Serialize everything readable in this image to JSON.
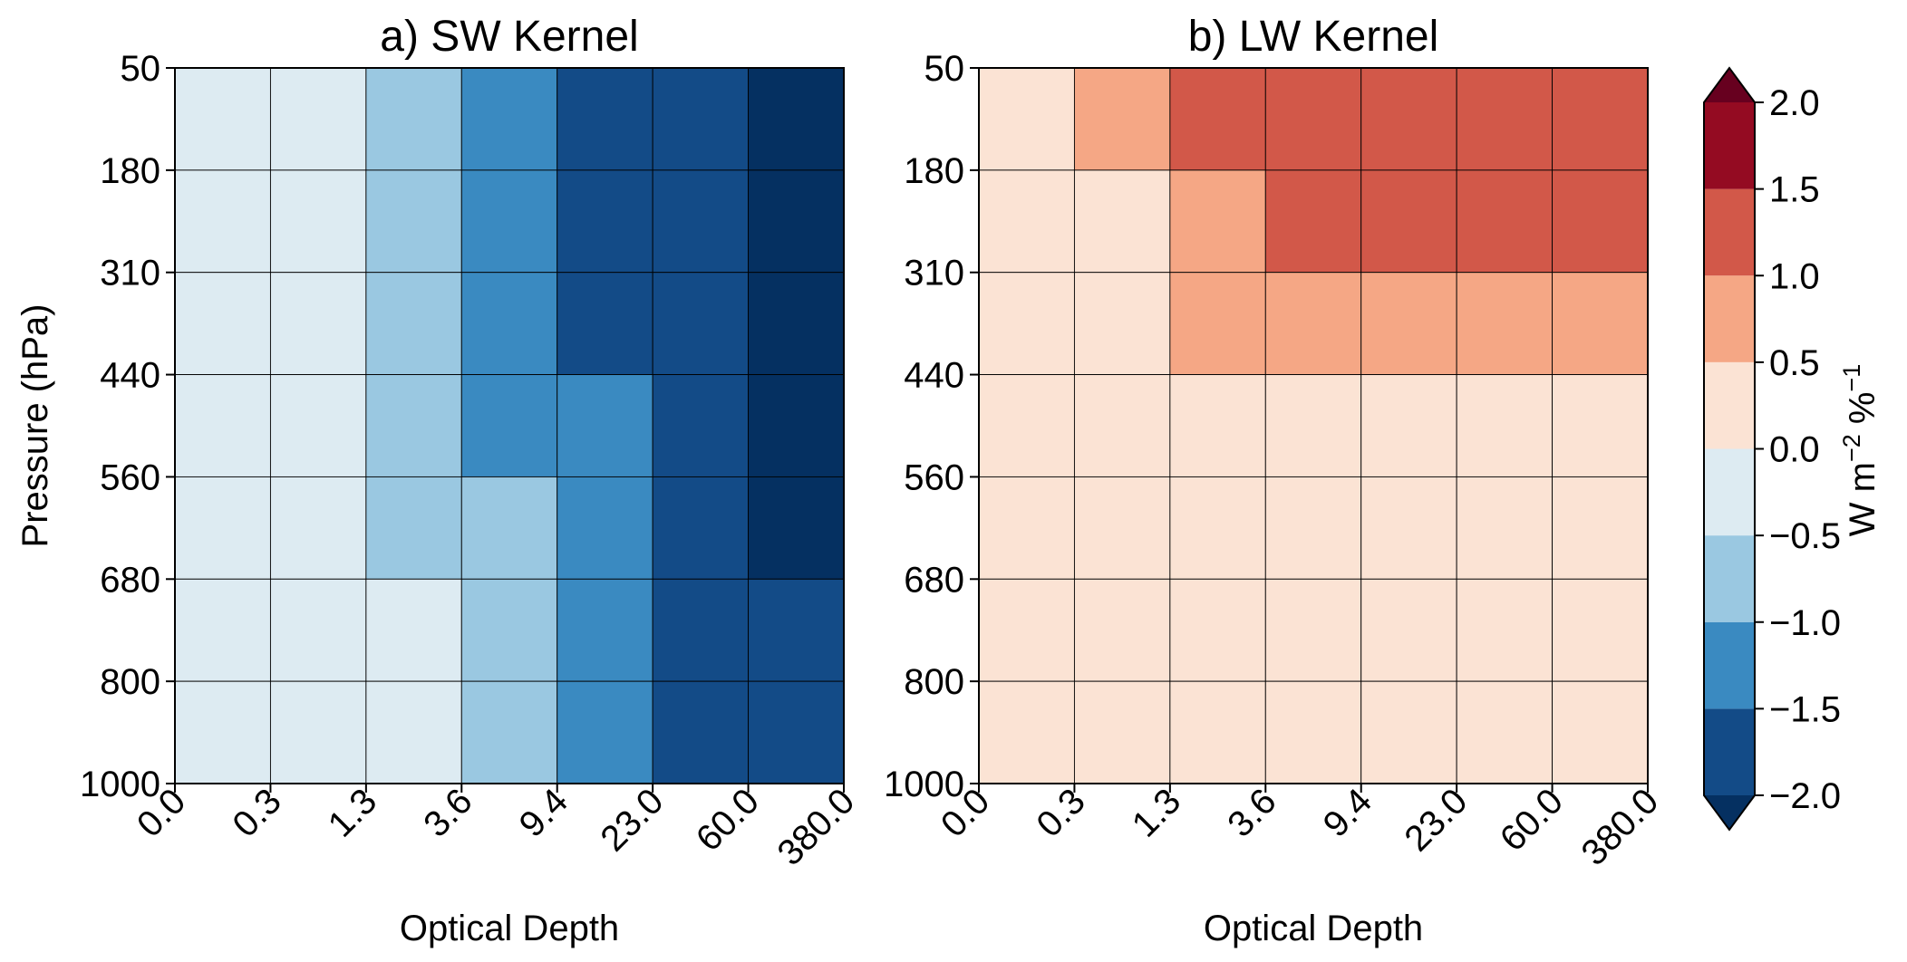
{
  "chart_data": [
    {
      "type": "heatmap",
      "title": "a) SW Kernel",
      "xlabel": "Optical Depth",
      "ylabel": "Pressure (hPa)",
      "x_ticks": [
        "0.0",
        "0.3",
        "1.3",
        "3.6",
        "9.4",
        "23.0",
        "60.0",
        "380.0"
      ],
      "y_ticks": [
        "50",
        "180",
        "310",
        "440",
        "560",
        "680",
        "800",
        "1000"
      ],
      "rows_top_to_bottom": [
        "50-180",
        "180-310",
        "310-440",
        "440-560",
        "560-680",
        "680-800",
        "800-1000"
      ],
      "columns_left_to_right": [
        "0.0-0.3",
        "0.3-1.3",
        "1.3-3.6",
        "3.6-9.4",
        "9.4-23.0",
        "23.0-60.0",
        "60.0-380.0"
      ],
      "values": [
        [
          -0.05,
          -0.3,
          -0.75,
          -1.25,
          -1.6,
          -1.9,
          -2.1
        ],
        [
          -0.05,
          -0.3,
          -0.75,
          -1.2,
          -1.55,
          -1.9,
          -2.1
        ],
        [
          -0.05,
          -0.3,
          -0.75,
          -1.2,
          -1.55,
          -1.9,
          -2.1
        ],
        [
          -0.05,
          -0.28,
          -0.7,
          -1.15,
          -1.5,
          -1.85,
          -2.1
        ],
        [
          -0.03,
          -0.2,
          -0.6,
          -1.0,
          -1.4,
          -1.75,
          -2.05
        ],
        [
          -0.02,
          -0.15,
          -0.5,
          -0.9,
          -1.3,
          -1.65,
          -1.95
        ],
        [
          -0.01,
          -0.12,
          -0.45,
          -0.85,
          -1.25,
          -1.55,
          -1.85
        ]
      ]
    },
    {
      "type": "heatmap",
      "title": "b) LW Kernel",
      "xlabel": "Optical Depth",
      "ylabel": "",
      "x_ticks": [
        "0.0",
        "0.3",
        "1.3",
        "3.6",
        "9.4",
        "23.0",
        "60.0",
        "380.0"
      ],
      "y_ticks": [
        "50",
        "180",
        "310",
        "440",
        "560",
        "680",
        "800",
        "1000"
      ],
      "rows_top_to_bottom": [
        "50-180",
        "180-310",
        "310-440",
        "440-560",
        "560-680",
        "680-800",
        "800-1000"
      ],
      "columns_left_to_right": [
        "0.0-0.3",
        "0.3-1.3",
        "1.3-3.6",
        "3.6-9.4",
        "9.4-23.0",
        "23.0-60.0",
        "60.0-380.0"
      ],
      "values": [
        [
          0.15,
          0.6,
          1.1,
          1.35,
          1.4,
          1.4,
          1.4
        ],
        [
          0.1,
          0.45,
          0.9,
          1.05,
          1.1,
          1.1,
          1.1
        ],
        [
          0.05,
          0.3,
          0.6,
          0.7,
          0.75,
          0.75,
          0.75
        ],
        [
          0.05,
          0.2,
          0.3,
          0.35,
          0.38,
          0.4,
          0.4
        ],
        [
          0.03,
          0.12,
          0.18,
          0.2,
          0.22,
          0.22,
          0.22
        ],
        [
          0.02,
          0.08,
          0.12,
          0.14,
          0.15,
          0.15,
          0.15
        ],
        [
          0.01,
          0.04,
          0.06,
          0.07,
          0.07,
          0.07,
          0.07
        ]
      ]
    }
  ],
  "colorbar": {
    "label_base": "W m",
    "label_exp1": "−2",
    "label_mid": " %",
    "label_exp2": "−1",
    "ticks": [
      "2.0",
      "1.5",
      "1.0",
      "0.5",
      "0.0",
      "−0.5",
      "−1.0",
      "−1.5",
      "−2.0"
    ],
    "tick_values": [
      2.0,
      1.5,
      1.0,
      0.5,
      0.0,
      -0.5,
      -1.0,
      -1.5,
      -2.0
    ],
    "vmin": -2.0,
    "vmax": 2.0,
    "extend": "both",
    "colors_low_to_high": [
      "#134b87",
      "#3a8ac1",
      "#9ac8e1",
      "#ddebf2",
      "#fbe3d4",
      "#f5a785",
      "#d25849",
      "#940b22"
    ],
    "extend_low_color": "#053061",
    "extend_high_color": "#67001f",
    "colormap": "RdBu_r"
  }
}
